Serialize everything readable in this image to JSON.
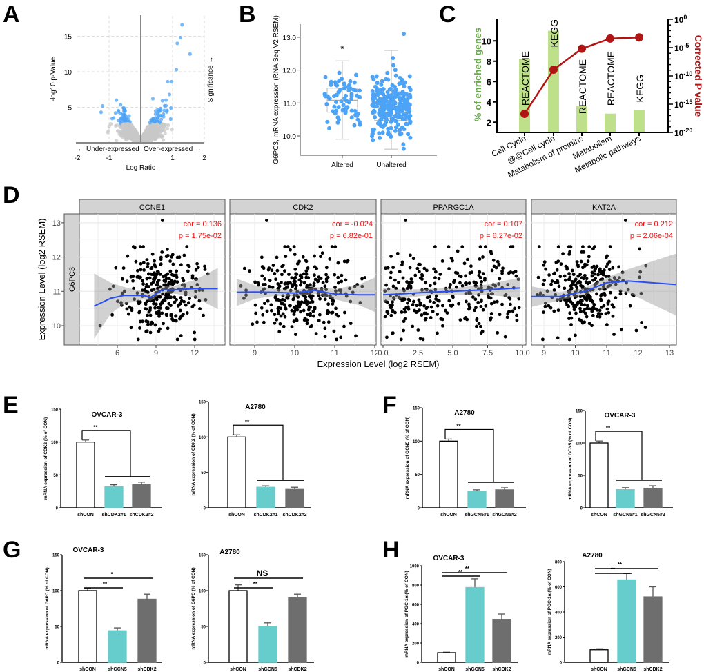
{
  "panel_labels": {
    "A": "A",
    "B": "B",
    "C": "C",
    "D": "D",
    "E": "E",
    "F": "F",
    "G": "G",
    "H": "H"
  },
  "colors": {
    "blue": "#4da3f5",
    "gray_point": "#c8c8c8",
    "green_bar": "#bfe08a",
    "red_line": "#b01414",
    "green_label": "#6aa84f",
    "teal": "#66cdcc",
    "dark_bar": "#6e6e6e",
    "fit": "#2a4ff0",
    "cor_text": "#ee1111"
  },
  "chart_data": [
    {
      "id": "A",
      "type": "scatter",
      "xlabel": "Log Ratio",
      "ylabel": "-log10 p-Value",
      "right_label": "Significance →",
      "under_label": "← Under-expressed",
      "over_label": "Over-expressed →",
      "xticks": [
        {
          "v": -2,
          "t": "-2"
        },
        {
          "v": -1,
          "t": "-1"
        },
        {
          "v": 1,
          "t": "1"
        },
        {
          "v": 2,
          "t": "2"
        }
      ],
      "yticks": [
        {
          "v": 5,
          "t": "5"
        },
        {
          "v": 10,
          "t": "10"
        },
        {
          "v": 15,
          "t": "15"
        }
      ],
      "xlim": [
        -2,
        2
      ],
      "ylim": [
        0,
        18
      ],
      "significance_threshold": 2.7,
      "top_points": [
        [
          1.3,
          16.6
        ],
        [
          1.25,
          14.8
        ],
        [
          1.15,
          14.0
        ],
        [
          1.55,
          12.5
        ],
        [
          1.12,
          10.3
        ],
        [
          0.85,
          8.6
        ],
        [
          0.97,
          8.6
        ],
        [
          0.9,
          6.8
        ],
        [
          0.38,
          6.2
        ],
        [
          0.95,
          4.9
        ],
        [
          -1.25,
          4.3
        ]
      ],
      "background_points": 1600
    },
    {
      "id": "B",
      "type": "box",
      "ylabel": "G6PC3, mRNA expression (RNA Seq V2 RSEM)",
      "yticks": [
        {
          "v": 10,
          "t": "10.0"
        },
        {
          "v": 11,
          "t": "11.0"
        },
        {
          "v": 12,
          "t": "12.0"
        },
        {
          "v": 13,
          "t": "13.0"
        }
      ],
      "ylim": [
        9.4,
        13.4
      ],
      "groups": [
        {
          "name": "Altered",
          "n": 75,
          "min": 9.9,
          "q1": 10.72,
          "median": 11.08,
          "q3": 11.45,
          "max": 12.28,
          "sig": "*"
        },
        {
          "name": "Unaltered",
          "n": 260,
          "min": 9.6,
          "q1": 10.47,
          "median": 10.88,
          "q3": 11.33,
          "max": 12.6,
          "outlier": 13.1,
          "sig": ""
        }
      ]
    },
    {
      "id": "C",
      "type": "bar+line",
      "ylabel_left": "% of enriched genes",
      "ylabel_right": "Corrected P value",
      "yticks_left": [
        2,
        4,
        6,
        8,
        10
      ],
      "ylim_left": [
        1,
        11
      ],
      "yticks_right": [
        {
          "v": 0,
          "t": "10",
          "e": "0"
        },
        {
          "v": -5,
          "t": "10",
          "e": "-5"
        },
        {
          "v": -10,
          "t": "10",
          "e": "-10"
        },
        {
          "v": -15,
          "t": "10",
          "e": "-15"
        },
        {
          "v": -20,
          "t": "10",
          "e": "-20"
        }
      ],
      "categories": [
        "Cell Cycle",
        "@@Cell cycle",
        "Matabolism of proteins",
        "Metabolism",
        "Metabolic pathways"
      ],
      "sources": [
        "REACTOME",
        "KEGG",
        "REACTOME",
        "REACTOME",
        "KEGG"
      ],
      "percent": [
        8.2,
        11.0,
        3.6,
        2.85,
        3.2
      ],
      "log10_p": [
        -16.7,
        -8.9,
        -5.2,
        -3.4,
        -3.2
      ]
    },
    {
      "id": "D",
      "type": "scatter-facets",
      "xlabel": "Expression Level (log2 RSEM)",
      "ylabel": "Expression Level (log2 RSEM)",
      "row_label": "G6PC3",
      "yticks": [
        10,
        11,
        12,
        13
      ],
      "ylim": [
        9.45,
        13.3
      ],
      "panels": [
        {
          "gene": "CCNE1",
          "cor": "cor = 0.136",
          "p": "p = 1.75e-02",
          "xticks": [
            {
              "v": 6,
              "t": "6"
            },
            {
              "v": 9,
              "t": "9"
            },
            {
              "v": 12,
              "t": "12"
            }
          ],
          "xlim": [
            3.5,
            14.4
          ],
          "points": {
            "n": 300,
            "dist": "normal",
            "mean": 9.3,
            "sd": 1.5
          },
          "fit": [
            [
              4.2,
              10.57,
              0.95
            ],
            [
              5.5,
              10.8,
              0.45
            ],
            [
              6.5,
              10.88,
              0.25
            ],
            [
              8,
              10.88,
              0.12
            ],
            [
              8.6,
              10.83,
              0.1
            ],
            [
              9.5,
              11.05,
              0.1
            ],
            [
              10.5,
              11.05,
              0.12
            ],
            [
              12,
              11.08,
              0.25
            ],
            [
              13.8,
              11.08,
              0.6
            ]
          ]
        },
        {
          "gene": "CDK2",
          "cor": "cor = -0.024",
          "p": "p = 6.82e-01",
          "xticks": [
            {
              "v": 9,
              "t": "9"
            },
            {
              "v": 10,
              "t": "10"
            },
            {
              "v": 11,
              "t": "11"
            },
            {
              "v": 12,
              "t": "12"
            }
          ],
          "xlim": [
            8.4,
            12.05
          ],
          "points": {
            "n": 300,
            "dist": "normal",
            "mean": 10.2,
            "sd": 0.65
          },
          "fit": [
            [
              8.55,
              10.97,
              0.4
            ],
            [
              9,
              10.98,
              0.2
            ],
            [
              9.5,
              10.97,
              0.1
            ],
            [
              10,
              10.95,
              0.1
            ],
            [
              10.5,
              11.03,
              0.1
            ],
            [
              11,
              10.92,
              0.15
            ],
            [
              11.6,
              10.9,
              0.3
            ],
            [
              12,
              10.9,
              0.5
            ]
          ]
        },
        {
          "gene": "PPARGC1A",
          "cor": "cor = 0.107",
          "p": "p = 6.27e-02",
          "xticks": [
            {
              "v": 0,
              "t": "0.0"
            },
            {
              "v": 2.5,
              "t": "2.5"
            },
            {
              "v": 5,
              "t": "5.0"
            },
            {
              "v": 7.5,
              "t": "7.5"
            },
            {
              "v": 10,
              "t": "10.0"
            }
          ],
          "xlim": [
            -0.2,
            10.2
          ],
          "points": {
            "n": 300,
            "dist": "uniform",
            "min": 0,
            "max": 9.8
          },
          "fit": [
            [
              0,
              10.9,
              0.2
            ],
            [
              1.5,
              10.93,
              0.12
            ],
            [
              3,
              10.97,
              0.1
            ],
            [
              5,
              11.0,
              0.1
            ],
            [
              7.5,
              11.05,
              0.15
            ],
            [
              9.8,
              11.1,
              0.3
            ]
          ]
        },
        {
          "gene": "KAT2A",
          "cor": "cor = 0.212",
          "p": "p = 2.06e-04",
          "xticks": [
            {
              "v": 9,
              "t": "9"
            },
            {
              "v": 10,
              "t": "10"
            },
            {
              "v": 11,
              "t": "11"
            },
            {
              "v": 12,
              "t": "12"
            },
            {
              "v": 13,
              "t": "13"
            }
          ],
          "xlim": [
            8.6,
            13.35
          ],
          "points": {
            "n": 300,
            "dist": "normal",
            "mean": 10.3,
            "sd": 0.7
          },
          "fit": [
            [
              8.6,
              10.85,
              0.3
            ],
            [
              9.5,
              10.85,
              0.12
            ],
            [
              10.3,
              11.0,
              0.1
            ],
            [
              11,
              11.25,
              0.15
            ],
            [
              11.7,
              11.3,
              0.35
            ],
            [
              13.2,
              11.2,
              0.9
            ]
          ]
        }
      ]
    },
    {
      "id": "E1",
      "type": "bar",
      "title": "OVCAR-3",
      "ylabel": "mRNA expression of CDK2 (% of CON)",
      "ymax": 150,
      "yticks": [
        0,
        50,
        100,
        150
      ],
      "categories": [
        "shCON",
        "shCDK2#1",
        "shCDK2#2"
      ],
      "values": [
        100,
        32,
        35
      ],
      "errors": [
        3,
        3,
        4
      ],
      "sig_style": "group",
      "sig": [
        {
          "label": "**"
        }
      ]
    },
    {
      "id": "E2",
      "type": "bar",
      "title": "A2780",
      "ylabel": "mRNA expression of CDK2 (% of CON)",
      "ymax": 150,
      "yticks": [
        0,
        50,
        100,
        150
      ],
      "categories": [
        "shCON",
        "shCDK2#1",
        "shCDK2#2"
      ],
      "values": [
        100,
        29,
        26
      ],
      "errors": [
        3,
        2,
        3
      ],
      "sig_style": "group",
      "sig": [
        {
          "label": "**"
        }
      ]
    },
    {
      "id": "F1",
      "type": "bar",
      "title": "A2780",
      "ylabel": "mRNA expression of GCN5 (% of CON)",
      "ymax": 150,
      "yticks": [
        0,
        50,
        100,
        150
      ],
      "categories": [
        "shCON",
        "shGCN5#1",
        "shGCN5#2"
      ],
      "values": [
        100,
        25,
        27
      ],
      "errors": [
        3,
        2,
        3
      ],
      "sig_style": "group",
      "sig": [
        {
          "label": "**"
        }
      ]
    },
    {
      "id": "F2",
      "type": "bar",
      "title": "OVCAR-3",
      "ylabel": "mRNA expression of GCN5 (% of CON)",
      "ymax": 150,
      "yticks": [
        0,
        50,
        100,
        150
      ],
      "categories": [
        "shCON",
        "shGCN5#1",
        "shGCN5#2"
      ],
      "values": [
        100,
        28,
        30
      ],
      "errors": [
        3,
        3,
        4
      ],
      "sig_style": "group",
      "sig": [
        {
          "label": "**"
        }
      ]
    },
    {
      "id": "G1",
      "type": "bar",
      "title": "OVCAR-3",
      "ylabel": "mRNA expression of G6PC (% of CON)",
      "ymax": 150,
      "yticks": [
        0,
        50,
        100,
        150
      ],
      "categories": [
        "shCON",
        "shGCN5",
        "shCDK2"
      ],
      "values": [
        100,
        44,
        88
      ],
      "errors": [
        3,
        4,
        7
      ],
      "sig_style": "pair",
      "sig": [
        {
          "to": 1,
          "label": "**"
        },
        {
          "to": 2,
          "label": "*"
        }
      ]
    },
    {
      "id": "G2",
      "type": "bar",
      "title": "A2780",
      "ylabel": "mRNA expression of G6PC (% of CON)",
      "ymax": 150,
      "yticks": [
        0,
        50,
        100,
        150
      ],
      "categories": [
        "shCON",
        "shGCN5",
        "shCDK2"
      ],
      "values": [
        100,
        50,
        90
      ],
      "errors": [
        8,
        5,
        5
      ],
      "sig_style": "pair",
      "sig": [
        {
          "to": 1,
          "label": "**"
        },
        {
          "to": 2,
          "label": "NS"
        }
      ]
    },
    {
      "id": "H1",
      "type": "bar",
      "title": "OVCAR-3",
      "ylabel": "mRNA expression of PGC-1α (% of CON)",
      "ymax": 1000,
      "yticks": [
        0,
        200,
        400,
        600,
        800,
        1000
      ],
      "categories": [
        "shCON",
        "shGCN5",
        "shCDK2"
      ],
      "values": [
        100,
        775,
        445
      ],
      "errors": [
        5,
        90,
        55
      ],
      "sig_style": "pair",
      "sig": [
        {
          "to": 1,
          "label": "**"
        },
        {
          "to": 2,
          "label": "**"
        }
      ]
    },
    {
      "id": "H2",
      "type": "bar",
      "title": "A2780",
      "ylabel": "mRNA expression of PGC-1α (% of CON)",
      "ymax": 800,
      "yticks": [
        0,
        200,
        400,
        600,
        800
      ],
      "categories": [
        "shCON",
        "shGCN5",
        "shCDK2"
      ],
      "values": [
        100,
        655,
        520
      ],
      "errors": [
        8,
        50,
        80
      ],
      "sig_style": "pair",
      "sig": [
        {
          "to": 1,
          "label": "**"
        },
        {
          "to": 2,
          "label": "**"
        }
      ]
    }
  ]
}
